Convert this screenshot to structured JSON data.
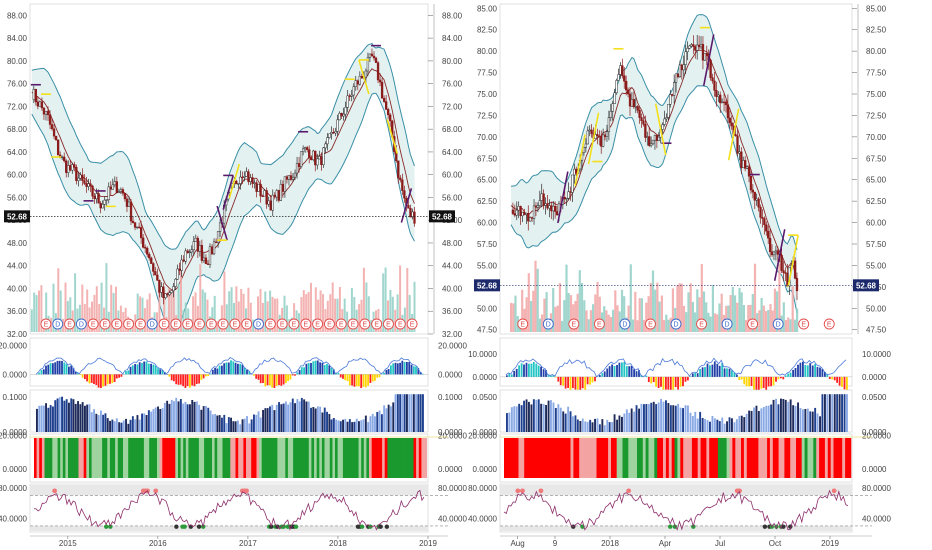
{
  "chart_data": [
    {
      "type": "line",
      "panel": "left-price",
      "ylim": [
        32,
        90
      ],
      "y_ticks": [
        "88.00",
        "84.00",
        "80.00",
        "76.00",
        "72.00",
        "68.00",
        "64.00",
        "60.00",
        "56.00",
        "52.00",
        "48.00",
        "44.00",
        "40.00",
        "36.00",
        "32.00"
      ],
      "last_price_label": "52.68",
      "last_price": 52.68,
      "x_ticks": [
        "2015",
        "2016",
        "2017",
        "2018",
        "2019"
      ],
      "x_tick_years": [
        2015,
        2016,
        2017,
        2018,
        2019
      ],
      "x_range": [
        2014.58,
        2019.0
      ],
      "series": [
        {
          "values": [
            74.5,
            73,
            71.5,
            70,
            67,
            64,
            62,
            61,
            60.5,
            59,
            58,
            57,
            56,
            55,
            56,
            57.5,
            58,
            57,
            55,
            52,
            50,
            48,
            46,
            43,
            40,
            38,
            39,
            41,
            44,
            46.5,
            47,
            48,
            46,
            45,
            47,
            50,
            53,
            56,
            58,
            60,
            61,
            59,
            58,
            57,
            56,
            55,
            56,
            57.5,
            59,
            60,
            62,
            64,
            64.5,
            63,
            62,
            64,
            66,
            68,
            70,
            72,
            74,
            76,
            77,
            79,
            80.5,
            78,
            74,
            70,
            66,
            60,
            56,
            53,
            52.68
          ]
        }
      ],
      "price_range": [
        2014.6,
        2018.85
      ],
      "event_markers": [
        "E",
        "D",
        "E",
        "D",
        "E",
        "E",
        "E",
        "E",
        "E",
        "D",
        "E",
        "E",
        "E",
        "E",
        "E",
        "E",
        "E",
        "E",
        "D",
        "E",
        "E",
        "E",
        "E",
        "E",
        "E",
        "E",
        "E",
        "E",
        "E",
        "E",
        "E",
        "E"
      ],
      "volume_ylim": [
        0,
        60
      ]
    },
    {
      "type": "line",
      "panel": "right-price",
      "ylim": [
        47,
        85.5
      ],
      "y_ticks": [
        "85.00",
        "82.50",
        "80.00",
        "77.50",
        "75.00",
        "72.50",
        "70.00",
        "67.50",
        "65.00",
        "62.50",
        "60.00",
        "57.50",
        "55.00",
        "52.50",
        "50.00",
        "47.50"
      ],
      "last_price_label": "52.68",
      "last_price": 52.68,
      "x_ticks": [
        "Aug",
        "9",
        "2018",
        "Apr",
        "Jul",
        "Oct",
        "2019"
      ],
      "x_tick_years": [
        2017.58,
        2017.75,
        2018.0,
        2018.25,
        2018.5,
        2018.75,
        2019.0
      ],
      "x_range": [
        2017.5,
        2019.1
      ],
      "series": [
        {
          "values": [
            62,
            61,
            61.5,
            60.5,
            61,
            62,
            63,
            62.5,
            62,
            61.5,
            62,
            63,
            64.5,
            66,
            68,
            70,
            71,
            70,
            69.5,
            71,
            73,
            76,
            78,
            75,
            74,
            73,
            72,
            70,
            69,
            70,
            71,
            73,
            75,
            77,
            78,
            79.5,
            80.5,
            81,
            80,
            79,
            77,
            75,
            74,
            73,
            71,
            69,
            67,
            66,
            64,
            62,
            60,
            58,
            57,
            56,
            55,
            53,
            55.5,
            52.68
          ]
        }
      ],
      "price_range": [
        2017.55,
        2018.85
      ],
      "event_markers": [
        "E",
        "D",
        "E",
        "E",
        "D",
        "E",
        "D",
        "E",
        "D",
        "E",
        "D",
        "E",
        "E"
      ],
      "volume_ylim": [
        0,
        60
      ]
    },
    {
      "type": "area",
      "panel": "oscillator-1",
      "left_ticks": [
        "20.0000",
        "0.0000"
      ],
      "right_ticks": [
        "10.0000",
        "0.0000"
      ],
      "left_ylim": [
        -8,
        25
      ],
      "right_ylim": [
        -4,
        17
      ],
      "left_ytick_values": [
        20,
        0
      ],
      "right_ytick_values": [
        10,
        0
      ]
    },
    {
      "type": "area",
      "panel": "oscillator-2",
      "left_ticks": [
        "0.1000",
        "0.0000"
      ],
      "right_ticks": [
        "0.0500",
        "0.0000"
      ],
      "left_ylim": [
        0,
        0.12
      ],
      "right_ylim": [
        0,
        0.06
      ],
      "left_ytick_values": [
        0.1,
        0
      ],
      "right_ytick_values": [
        0.05,
        0
      ]
    },
    {
      "type": "heatmap",
      "panel": "trend-bars",
      "left_ticks": [
        "20.0000",
        "0.0000"
      ],
      "right_ticks": [
        "20.0000",
        "0.0000"
      ],
      "left_ytick_values": [
        20,
        0
      ],
      "right_ytick_values": [
        20,
        0
      ],
      "ylim": [
        -8,
        21
      ],
      "colors": {
        "red": "#ff0000",
        "light_red": "#f4a3a3",
        "green": "#1a9a2e",
        "light_green": "#9fd39f"
      }
    },
    {
      "type": "line",
      "panel": "rsi",
      "left_ticks": [
        "80.0000",
        "40.0000"
      ],
      "right_ticks": [
        "80.0000",
        "40.0000"
      ],
      "left_ytick_values": [
        80,
        40
      ],
      "right_ytick_values": [
        80,
        40
      ],
      "ylim": [
        22,
        85
      ],
      "band_upper": 70,
      "band_lower": 30
    }
  ],
  "colors": {
    "bollinger": "#3a8fa6",
    "band_fill": "#e3f1f1",
    "ma": "#8b2a2a",
    "up_candle": "#2b2b2b",
    "down_candle": "#8b1a1a",
    "last_tag_left": "#111111",
    "last_tag_right": "#1c2a6b",
    "volume_pink": "#f2a6a6",
    "volume_teal": "#8fcfc4",
    "osc_blue": "#1f3f8f",
    "osc_light_blue": "#8aaae6",
    "rsi_line": "#8e2f6b",
    "event_red": "#e24a4a",
    "event_blue": "#3a68c8"
  }
}
